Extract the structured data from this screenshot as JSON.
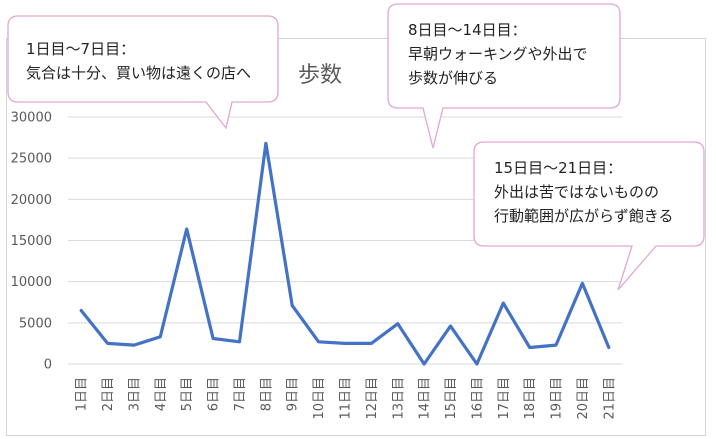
{
  "chart_data": {
    "type": "line",
    "title": "歩数",
    "categories": [
      "1日目",
      "2日目",
      "3日目",
      "4日目",
      "5日目",
      "6日目",
      "7日目",
      "8日目",
      "9日目",
      "10日目",
      "11日目",
      "12日目",
      "13日目",
      "14日目",
      "15日目",
      "16日目",
      "17日目",
      "18日目",
      "19日目",
      "20日目",
      "21日目"
    ],
    "series": [
      {
        "values": [
          6500,
          2500,
          2300,
          3300,
          16400,
          3100,
          2700,
          26800,
          7100,
          2700,
          2500,
          2500,
          4900,
          0,
          4600,
          0,
          7400,
          2000,
          2300,
          9800,
          2000
        ]
      }
    ],
    "ylim": [
      0,
      30000
    ],
    "yticks": [
      "0",
      "5000",
      "10000",
      "15000",
      "20000",
      "25000",
      "30000"
    ],
    "grid": true,
    "line_color": "#4472c4"
  },
  "callouts": [
    {
      "line1": "1日目〜7日目：",
      "line2": "気合は十分、買い物は遠くの店へ"
    },
    {
      "line1": "8日目〜14日目：",
      "line2": "早朝ウォーキングや外出で",
      "line3": "歩数が伸びる"
    },
    {
      "line1": "15日目〜21日目：",
      "line2": "外出は苦ではないものの",
      "line3": "行動範囲が広がらず飽きる"
    }
  ]
}
